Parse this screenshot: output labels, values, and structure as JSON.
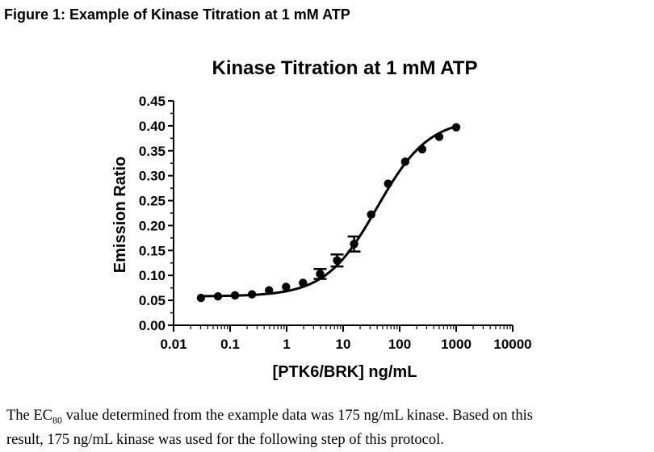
{
  "figure_label": "Figure 1: Example of Kinase Titration at 1 mM ATP",
  "caption": {
    "text_before_sub": "The EC",
    "sub": "80",
    "text_line1_rest": " value determined from the example data was 175 ng/mL kinase.  Based on this",
    "text_line2": "result, 175 ng/mL kinase was used for the following step of this protocol."
  },
  "chart_data": {
    "type": "scatter",
    "title": "Kinase Titration at 1 mM ATP",
    "xlabel": "[PTK6/BRK] ng/mL",
    "ylabel": "Emission Ratio",
    "xscale": "log",
    "xlim": [
      0.01,
      10000
    ],
    "ylim": [
      0.0,
      0.45
    ],
    "xticks": [
      0.01,
      0.1,
      1,
      10,
      100,
      1000,
      10000
    ],
    "xtick_labels": [
      "0.01",
      "0.1",
      "1",
      "10",
      "100",
      "1000",
      "10000"
    ],
    "yticks": [
      0.0,
      0.05,
      0.1,
      0.15,
      0.2,
      0.25,
      0.3,
      0.35,
      0.4,
      0.45
    ],
    "ytick_labels": [
      "0.00",
      "0.05",
      "0.10",
      "0.15",
      "0.20",
      "0.25",
      "0.30",
      "0.35",
      "0.40",
      "0.45"
    ],
    "grid": false,
    "series": [
      {
        "name": "Emission Ratio",
        "x": [
          0.0305,
          0.061,
          0.122,
          0.244,
          0.488,
          0.977,
          1.95,
          3.91,
          7.81,
          15.6,
          31.3,
          62.5,
          125,
          250,
          500,
          1000
        ],
        "y": [
          0.055,
          0.058,
          0.06,
          0.062,
          0.07,
          0.077,
          0.085,
          0.103,
          0.13,
          0.163,
          0.222,
          0.284,
          0.328,
          0.353,
          0.378,
          0.397
        ],
        "err": [
          0.002,
          0.002,
          0.002,
          0.002,
          0.002,
          0.002,
          0.003,
          0.01,
          0.012,
          0.015,
          0.003,
          0.003,
          0.003,
          0.003,
          0.003,
          0.002
        ]
      }
    ],
    "fit": {
      "model": "sigmoidal dose-response",
      "bottom": 0.058,
      "top": 0.415,
      "ec50": 40,
      "hill": 0.95
    }
  }
}
